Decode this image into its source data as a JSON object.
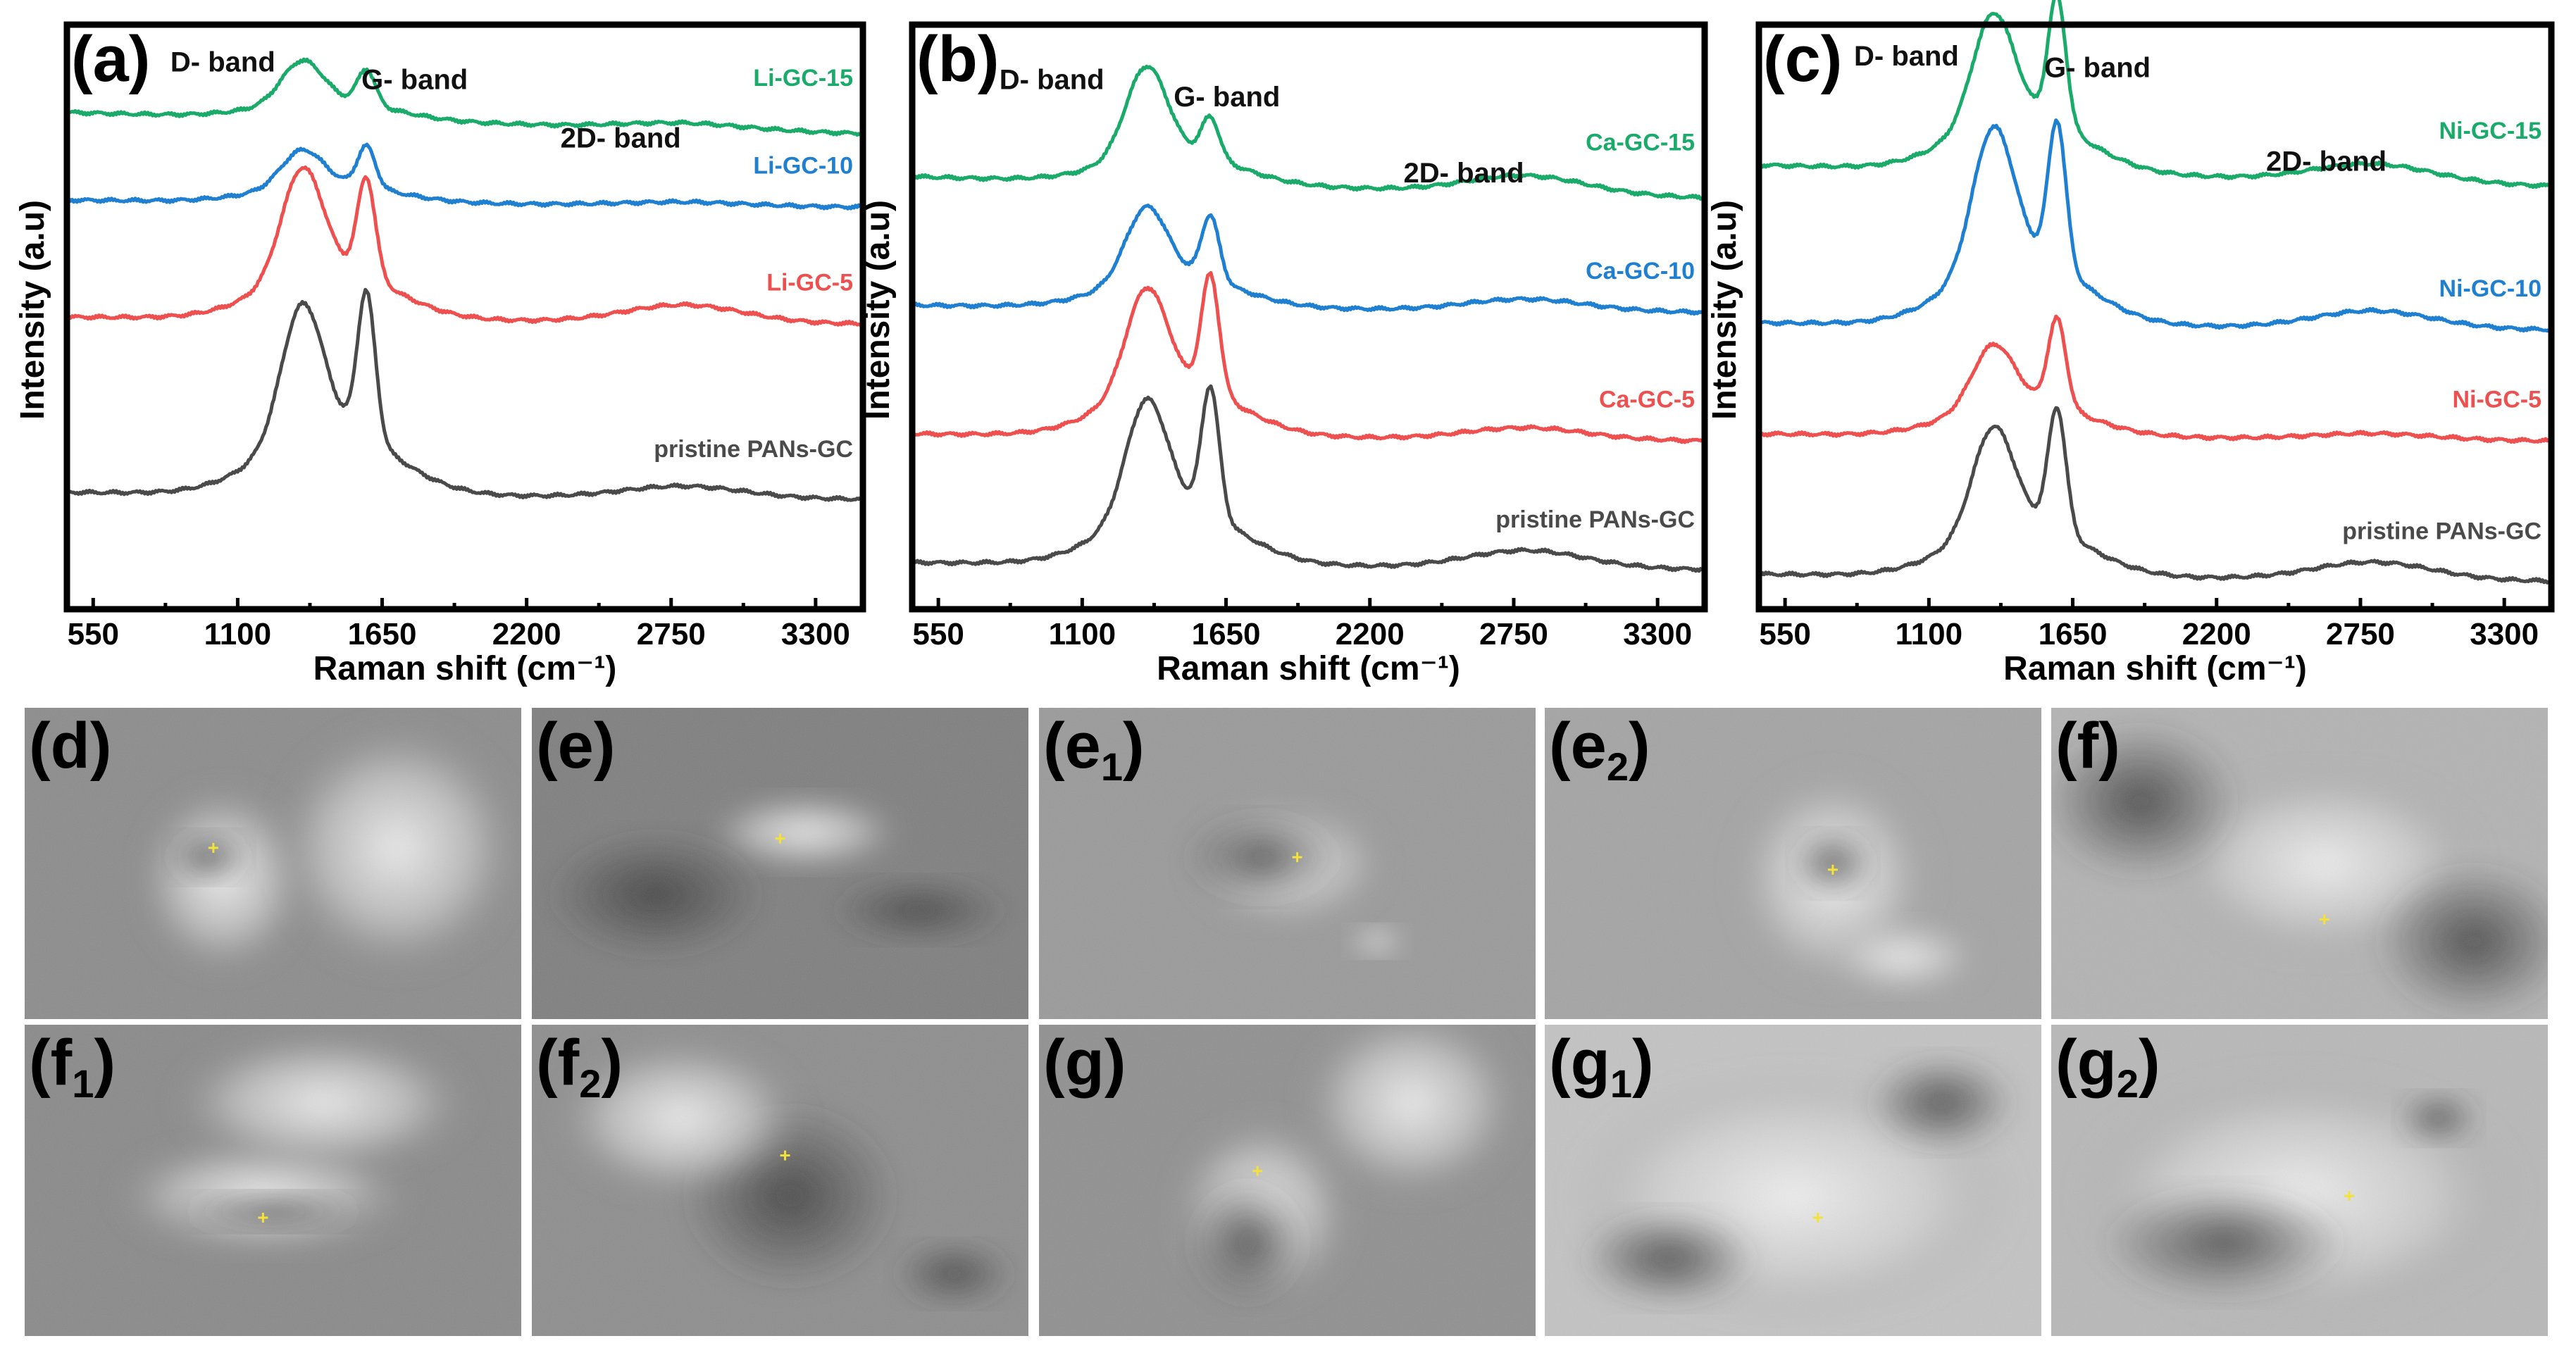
{
  "colors": {
    "green": "#1aaa6a",
    "blue": "#1f7fd0",
    "red": "#ee4f4f",
    "gray": "#4a4a4a"
  },
  "chart_data": [
    {
      "type": "line",
      "panel": "(a)",
      "xlabel": "Raman shift (cm⁻¹)",
      "ylabel": "Intensity (a.u)",
      "xlim": [
        450,
        3480
      ],
      "xticks": [
        550,
        1100,
        1650,
        2200,
        2750,
        3300
      ],
      "annotations": [
        "D- band",
        "G- band",
        "2D- band"
      ],
      "series": [
        {
          "name": "Li-GC-15",
          "color": "green",
          "baseline": 0.85,
          "d": 0.07,
          "g": 0.06,
          "twod": 0.01
        },
        {
          "name": "Li-GC-10",
          "color": "blue",
          "baseline": 0.7,
          "d": 0.06,
          "g": 0.07,
          "twod": 0.006
        },
        {
          "name": "Li-GC-5",
          "color": "red",
          "baseline": 0.5,
          "d": 0.18,
          "g": 0.17,
          "twod": 0.03
        },
        {
          "name": "pristine PANs-GC",
          "color": "gray",
          "baseline": 0.2,
          "d": 0.22,
          "g": 0.25,
          "twod": 0.02
        }
      ]
    },
    {
      "type": "line",
      "panel": "(b)",
      "xlabel": "Raman shift (cm⁻¹)",
      "ylabel": "Intensity (a.u)",
      "xlim": [
        450,
        3480
      ],
      "xticks": [
        550,
        1100,
        1650,
        2200,
        2750,
        3300
      ],
      "annotations": [
        "D- band",
        "G- band",
        "2D- band"
      ],
      "series": [
        {
          "name": "Ca-GC-15",
          "color": "green",
          "baseline": 0.74,
          "d": 0.15,
          "g": 0.07,
          "twod": 0.03
        },
        {
          "name": "Ca-GC-10",
          "color": "blue",
          "baseline": 0.52,
          "d": 0.12,
          "g": 0.11,
          "twod": 0.02
        },
        {
          "name": "Ca-GC-5",
          "color": "red",
          "baseline": 0.3,
          "d": 0.17,
          "g": 0.2,
          "twod": 0.02
        },
        {
          "name": "pristine PANs-GC",
          "color": "gray",
          "baseline": 0.08,
          "d": 0.19,
          "g": 0.22,
          "twod": 0.03
        }
      ]
    },
    {
      "type": "line",
      "panel": "(c)",
      "xlabel": "Raman shift (cm⁻¹)",
      "ylabel": "Intensity (a.u)",
      "xlim": [
        450,
        3480
      ],
      "xticks": [
        550,
        1100,
        1650,
        2200,
        2750,
        3300
      ],
      "annotations": [
        "D- band",
        "G- band",
        "2D- band"
      ],
      "series": [
        {
          "name": "Ni-GC-15",
          "color": "green",
          "baseline": 0.76,
          "d": 0.18,
          "g": 0.22,
          "twod": 0.03
        },
        {
          "name": "Ni-GC-10",
          "color": "blue",
          "baseline": 0.49,
          "d": 0.23,
          "g": 0.25,
          "twod": 0.03
        },
        {
          "name": "Ni-GC-5",
          "color": "red",
          "baseline": 0.3,
          "d": 0.1,
          "g": 0.15,
          "twod": 0.01
        },
        {
          "name": "pristine PANs-GC",
          "color": "gray",
          "baseline": 0.06,
          "d": 0.17,
          "g": 0.21,
          "twod": 0.03
        }
      ]
    }
  ],
  "micrographs": [
    {
      "letter": "d",
      "sub": ""
    },
    {
      "letter": "e",
      "sub": ""
    },
    {
      "letter": "e",
      "sub": "1"
    },
    {
      "letter": "e",
      "sub": "2"
    },
    {
      "letter": "f",
      "sub": ""
    },
    {
      "letter": "f",
      "sub": "1"
    },
    {
      "letter": "f",
      "sub": "2"
    },
    {
      "letter": "g",
      "sub": ""
    },
    {
      "letter": "g",
      "sub": "1"
    },
    {
      "letter": "g",
      "sub": "2"
    }
  ]
}
